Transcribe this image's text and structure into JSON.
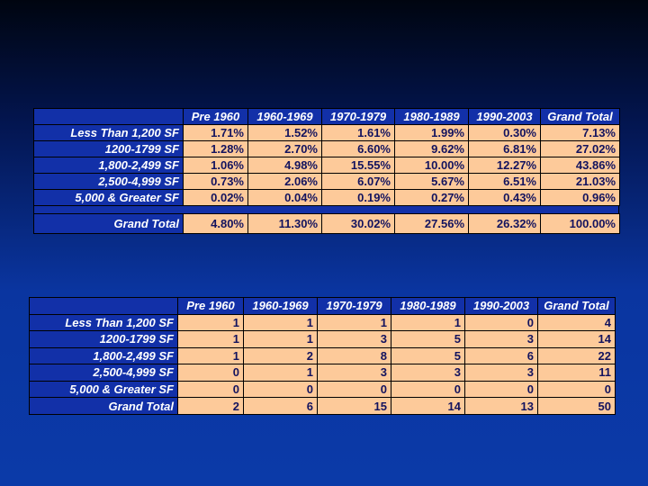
{
  "table1": {
    "columns": [
      "Pre 1960",
      "1960-1969",
      "1970-1979",
      "1980-1989",
      "1990-2003",
      "Grand Total"
    ],
    "rows": [
      {
        "label": "Less Than 1,200 SF",
        "cells": [
          "1.71%",
          "1.52%",
          "1.61%",
          "1.99%",
          "0.30%",
          "7.13%"
        ]
      },
      {
        "label": "1200-1799 SF",
        "cells": [
          "1.28%",
          "2.70%",
          "6.60%",
          "9.62%",
          "6.81%",
          "27.02%"
        ]
      },
      {
        "label": "1,800-2,499 SF",
        "cells": [
          "1.06%",
          "4.98%",
          "15.55%",
          "10.00%",
          "12.27%",
          "43.86%"
        ]
      },
      {
        "label": "2,500-4,999 SF",
        "cells": [
          "0.73%",
          "2.06%",
          "6.07%",
          "5.67%",
          "6.51%",
          "21.03%"
        ]
      },
      {
        "label": "5,000 & Greater SF",
        "cells": [
          "0.02%",
          "0.04%",
          "0.19%",
          "0.27%",
          "0.43%",
          "0.96%"
        ]
      }
    ],
    "total": {
      "label": "Grand Total",
      "cells": [
        "4.80%",
        "11.30%",
        "30.02%",
        "27.56%",
        "26.32%",
        "100.00%"
      ]
    }
  },
  "table2": {
    "columns": [
      "Pre 1960",
      "1960-1969",
      "1970-1979",
      "1980-1989",
      "1990-2003",
      "Grand Total"
    ],
    "rows": [
      {
        "label": "Less Than 1,200 SF",
        "cells": [
          1,
          1,
          1,
          1,
          0,
          4
        ]
      },
      {
        "label": "1200-1799 SF",
        "cells": [
          1,
          1,
          3,
          5,
          3,
          14
        ]
      },
      {
        "label": "1,800-2,499 SF",
        "cells": [
          1,
          2,
          8,
          5,
          6,
          22
        ]
      },
      {
        "label": "2,500-4,999 SF",
        "cells": [
          0,
          1,
          3,
          3,
          3,
          11
        ]
      },
      {
        "label": "5,000 & Greater SF",
        "cells": [
          0,
          0,
          0,
          0,
          0,
          0
        ]
      }
    ],
    "total": {
      "label": "Grand Total",
      "cells": [
        2,
        6,
        15,
        14,
        13,
        50
      ]
    }
  }
}
